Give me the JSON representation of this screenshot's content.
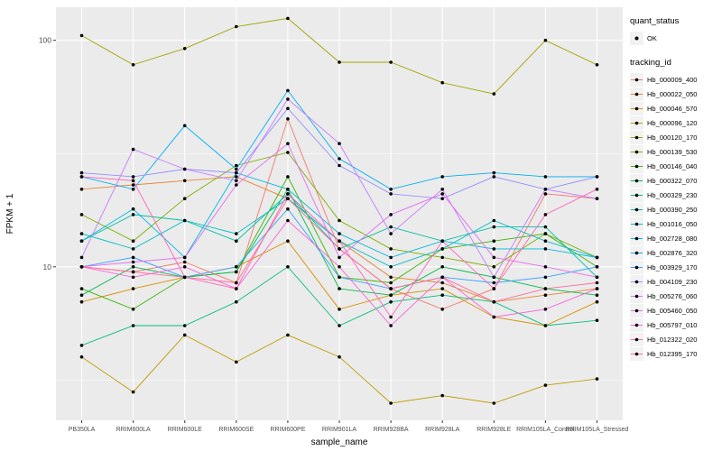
{
  "chart_data": {
    "type": "line",
    "title": "",
    "xlabel": "sample_name",
    "ylabel": "FPKM + 1",
    "y_scale": "log10",
    "ylim": [
      2.1,
      140
    ],
    "y_ticks": [
      10,
      100
    ],
    "y_minor": [
      3.162,
      31.623
    ],
    "panel_bg": "#EBEBEB",
    "grid_color": "#FFFFFF",
    "point_color": "#000000",
    "categories": [
      "PB350LA",
      "RRIM600LA",
      "RRIM600LE",
      "RRIM600SE",
      "RRIM600PE",
      "RRIM901LA",
      "RRIM928BA",
      "RRIM928LA",
      "RRIM928LE",
      "RRIM105LA_Control",
      "RRIM105LA_Stressed"
    ],
    "series": [
      {
        "name": "Hb_000009_400",
        "color": "#F8766D",
        "values": [
          10,
          9.5,
          10.5,
          8.5,
          45,
          12,
          8,
          6.5,
          8,
          21,
          20
        ]
      },
      {
        "name": "Hb_000022_050",
        "color": "#EA8331",
        "values": [
          22,
          23,
          24,
          25,
          20,
          13,
          9,
          8.5,
          7,
          7.5,
          8
        ]
      },
      {
        "name": "Hb_000046_570",
        "color": "#D89000",
        "values": [
          7,
          8,
          9,
          10,
          13,
          6.5,
          7.5,
          8,
          6,
          5.5,
          7
        ]
      },
      {
        "name": "Hb_000096_120",
        "color": "#C09B00",
        "values": [
          4,
          2.8,
          5,
          3.8,
          5,
          4,
          2.5,
          2.7,
          2.5,
          3,
          3.2
        ]
      },
      {
        "name": "Hb_000120_170",
        "color": "#A3A500",
        "values": [
          105,
          78,
          92,
          115,
          125,
          80,
          80,
          65,
          58,
          100,
          78
        ]
      },
      {
        "name": "Hb_000139_530",
        "color": "#7CAE00",
        "values": [
          17,
          13,
          20,
          28,
          32,
          16,
          12,
          11,
          10,
          14,
          11
        ]
      },
      {
        "name": "Hb_000146_040",
        "color": "#39B600",
        "values": [
          8,
          6.5,
          9,
          9.5,
          25,
          9,
          8.5,
          12,
          13,
          14,
          10
        ]
      },
      {
        "name": "Hb_000322_070",
        "color": "#00BB4E",
        "values": [
          7.5,
          10,
          9,
          9.5,
          22,
          8,
          7.5,
          10,
          9,
          8,
          7.5
        ]
      },
      {
        "name": "Hb_000329_230",
        "color": "#00BF7D",
        "values": [
          4.5,
          5.5,
          5.5,
          7,
          10,
          5.5,
          7,
          7.5,
          7,
          5.5,
          5.8
        ]
      },
      {
        "name": "Hb_000390_250",
        "color": "#00C1A3",
        "values": [
          13,
          17,
          16,
          13,
          21,
          12,
          15,
          13,
          15,
          15,
          9
        ]
      },
      {
        "name": "Hb_001016_050",
        "color": "#00BFC4",
        "values": [
          14,
          12,
          16,
          14,
          20,
          13,
          10,
          12,
          16,
          13,
          11
        ]
      },
      {
        "name": "Hb_002728_080",
        "color": "#00BAE0",
        "values": [
          13,
          18,
          11,
          26,
          22,
          14,
          11,
          13,
          12,
          12,
          11
        ]
      },
      {
        "name": "Hb_002876_320",
        "color": "#00B0F6",
        "values": [
          25,
          22,
          42,
          27,
          60,
          30,
          22,
          25,
          26,
          25,
          25
        ]
      },
      {
        "name": "Hb_003929_170",
        "color": "#35A2FF",
        "values": [
          10,
          11,
          9,
          10,
          18,
          9,
          8,
          9,
          8.5,
          9,
          10
        ]
      },
      {
        "name": "Hb_004109_230",
        "color": "#9590FF",
        "values": [
          26,
          25,
          27,
          26,
          50,
          28,
          21,
          20,
          25,
          22,
          25
        ]
      },
      {
        "name": "Hb_005276_060",
        "color": "#C77CFF",
        "values": [
          11,
          33,
          27,
          24,
          55,
          35,
          14,
          22,
          9,
          22,
          20
        ]
      },
      {
        "name": "Hb_005460_050",
        "color": "#E76BF3",
        "values": [
          10,
          10.5,
          11,
          23,
          35,
          11,
          17,
          21,
          11,
          10,
          9
        ]
      },
      {
        "name": "Hb_005797_010",
        "color": "#FA62DB",
        "values": [
          10,
          9,
          10,
          8,
          16,
          10,
          5.5,
          9,
          6,
          6.5,
          8
        ]
      },
      {
        "name": "Hb_012322_020",
        "color": "#FF62BC",
        "values": [
          25,
          24,
          9,
          8,
          21,
          13,
          6,
          13,
          8,
          17,
          22
        ]
      },
      {
        "name": "Hb_012395_170",
        "color": "#FF6A98",
        "values": [
          10,
          9.5,
          9,
          8.5,
          20,
          12,
          8,
          9,
          7,
          8,
          8.5
        ]
      }
    ],
    "legend": {
      "quant_status_title": "quant_status",
      "quant_status_items": [
        {
          "label": "OK",
          "symbol": "point",
          "color": "#000000"
        }
      ],
      "tracking_title": "tracking_id"
    }
  }
}
